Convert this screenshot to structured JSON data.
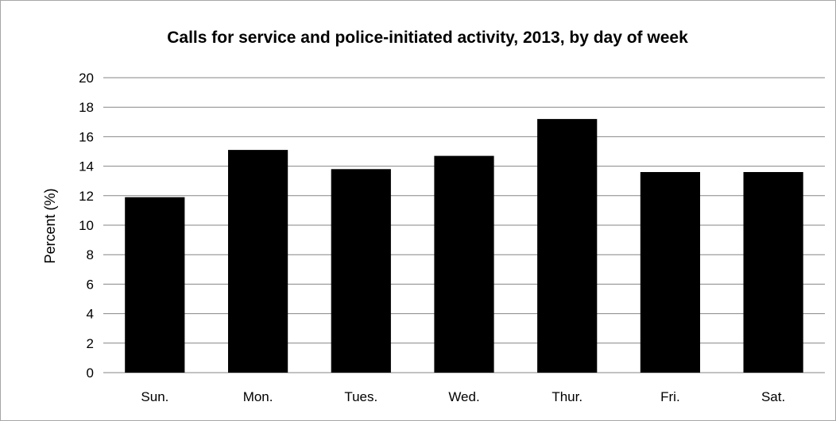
{
  "chart_data": {
    "type": "bar",
    "title": "Calls for service and police-initiated activity, 2013, by day of week",
    "xlabel": "",
    "ylabel": "Percent (%)",
    "categories": [
      "Sun.",
      "Mon.",
      "Tues.",
      "Wed.",
      "Thur.",
      "Fri.",
      "Sat."
    ],
    "values": [
      11.9,
      15.1,
      13.8,
      14.7,
      17.2,
      13.6,
      13.6
    ],
    "ylim": [
      0,
      20
    ],
    "yticks": [
      0,
      2,
      4,
      6,
      8,
      10,
      12,
      14,
      16,
      18,
      20
    ],
    "grid": "horizontal",
    "legend": "none",
    "bar_color": "#000000",
    "grid_color": "#868686"
  }
}
